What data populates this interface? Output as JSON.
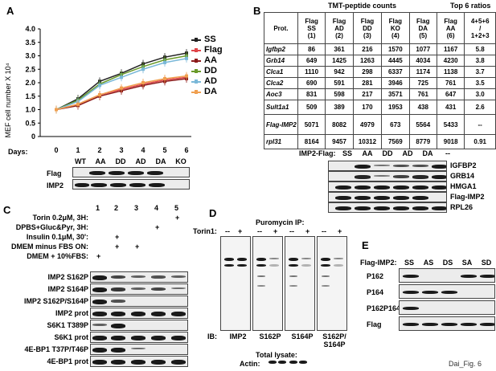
{
  "figure_id": "Dai_Fig. 6",
  "panel_a": {
    "label": "A",
    "chart_data": {
      "type": "line",
      "x": [
        0,
        1,
        2,
        3,
        4,
        5,
        6
      ],
      "xlabel_prefix": "Days:",
      "ylabel": "MEF cell number X 10⁴",
      "ylim": [
        0,
        4.0
      ],
      "yticks": [
        "0",
        "0.5",
        "1.0",
        "1.5",
        "2.0",
        "2.5",
        "3.0",
        "3.5",
        "4.0"
      ],
      "series": [
        {
          "name": "SS",
          "color": "#222222",
          "values": [
            1.0,
            1.4,
            2.05,
            2.35,
            2.7,
            2.95,
            3.1
          ]
        },
        {
          "name": "Flag",
          "color": "#e0464a",
          "values": [
            1.0,
            1.2,
            1.55,
            1.75,
            1.95,
            2.1,
            2.2
          ]
        },
        {
          "name": "AA",
          "color": "#8b1a1a",
          "values": [
            1.0,
            1.15,
            1.5,
            1.7,
            1.9,
            2.05,
            2.15
          ]
        },
        {
          "name": "DD",
          "color": "#6a9a2a",
          "values": [
            1.0,
            1.35,
            1.95,
            2.3,
            2.6,
            2.85,
            3.0
          ]
        },
        {
          "name": "AD",
          "color": "#7ab8d8",
          "values": [
            1.0,
            1.3,
            1.9,
            2.2,
            2.5,
            2.75,
            2.9
          ]
        },
        {
          "name": "DA",
          "color": "#f0a050",
          "values": [
            1.0,
            1.2,
            1.55,
            1.8,
            2.0,
            2.15,
            2.25
          ]
        }
      ]
    },
    "lane_labels": [
      "WT",
      "AA",
      "DD",
      "AD",
      "DA",
      "KO"
    ],
    "blots": [
      "Flag",
      "IMP2"
    ]
  },
  "panel_b": {
    "label": "B",
    "header_tmt": "TMT-peptide counts",
    "header_ratio": "Top 6 ratios",
    "columns": [
      {
        "l1": "Prot.",
        "l2": "",
        "l3": ""
      },
      {
        "l1": "Flag",
        "l2": "SS",
        "l3": "(1)"
      },
      {
        "l1": "Flag",
        "l2": "AD",
        "l3": "(2)"
      },
      {
        "l1": "Flag",
        "l2": "DD",
        "l3": "(3)"
      },
      {
        "l1": "Flag",
        "l2": "KO",
        "l3": "(4)"
      },
      {
        "l1": "Flag",
        "l2": "DA",
        "l3": "(5)"
      },
      {
        "l1": "Flag",
        "l2": "AA",
        "l3": "(6)"
      },
      {
        "l1": "4+5+6",
        "l2": "/",
        "l3": "1+2+3"
      }
    ],
    "rows": [
      [
        "Igfbp2",
        "86",
        "361",
        "216",
        "1570",
        "1077",
        "1167",
        "5.8"
      ],
      [
        "Grb14",
        "649",
        "1425",
        "1263",
        "4445",
        "4034",
        "4230",
        "3.8"
      ],
      [
        "Clca1",
        "1110",
        "942",
        "298",
        "6337",
        "1174",
        "1138",
        "3.7"
      ],
      [
        "Clca2",
        "690",
        "591",
        "281",
        "3946",
        "725",
        "761",
        "3.5"
      ],
      [
        "Aoc3",
        "831",
        "598",
        "217",
        "3571",
        "761",
        "647",
        "3.0"
      ],
      [
        "Sult1a1",
        "509",
        "389",
        "170",
        "1953",
        "438",
        "431",
        "2.6"
      ],
      [
        "Flag-IMP2",
        "5071",
        "8082",
        "4979",
        "673",
        "5564",
        "5433",
        "--"
      ],
      [
        "rpl31",
        "8164",
        "9457",
        "10312",
        "7569",
        "8779",
        "9018",
        "0.91"
      ]
    ],
    "imp2_flag_label": "IMP2-Flag:",
    "lanes": [
      "SS",
      "AA",
      "DD",
      "AD",
      "DA",
      "--"
    ],
    "blots": [
      "IGFBP2",
      "GRB14",
      "HMGA1",
      "Flag-IMP2",
      "RPL26"
    ]
  },
  "panel_c": {
    "label": "C",
    "lane_numbers": [
      "1",
      "2",
      "3",
      "4",
      "5"
    ],
    "conditions": [
      {
        "label": "Torin 0.2μM, 3H:",
        "marks": [
          "",
          "",
          "",
          "",
          "+"
        ]
      },
      {
        "label": "DPBS+Gluc&Pyr, 3H:",
        "marks": [
          "",
          "",
          "",
          "+",
          ""
        ]
      },
      {
        "label": "Insulin 0.1μM, 30':",
        "marks": [
          "",
          "+",
          "",
          "",
          ""
        ]
      },
      {
        "label": "DMEM minus FBS ON:",
        "marks": [
          "",
          "+",
          "+",
          "",
          ""
        ]
      },
      {
        "label": "DMEM + 10%FBS:",
        "marks": [
          "+",
          "",
          "",
          "",
          ""
        ]
      }
    ],
    "blots": [
      "IMP2 S162P",
      "IMP2 S164P",
      "IMP2 S162P/S164P",
      "IMP2 prot",
      "S6K1 T389P",
      "S6K1 prot",
      "4E-BP1 T37P/T46P",
      "4E-BP1 prot"
    ]
  },
  "panel_d": {
    "label": "D",
    "title": "Puromycin IP:",
    "torin_label": "Torin1:",
    "torin_marks": [
      "--",
      "+",
      "--",
      "+",
      "--",
      "+",
      "--",
      "+"
    ],
    "ib_prefix": "IB:",
    "ib_labels": [
      "IMP2",
      "S162P",
      "S164P",
      "S162P/ S164P"
    ],
    "total_lysate": "Total lysate:",
    "actin": "Actin:"
  },
  "panel_e": {
    "label": "E",
    "flag_label": "Flag-IMP2:",
    "lanes": [
      "SS",
      "AS",
      "DS",
      "SA",
      "SD"
    ],
    "blots": [
      "P162",
      "P164",
      "P162P164",
      "Flag"
    ]
  }
}
